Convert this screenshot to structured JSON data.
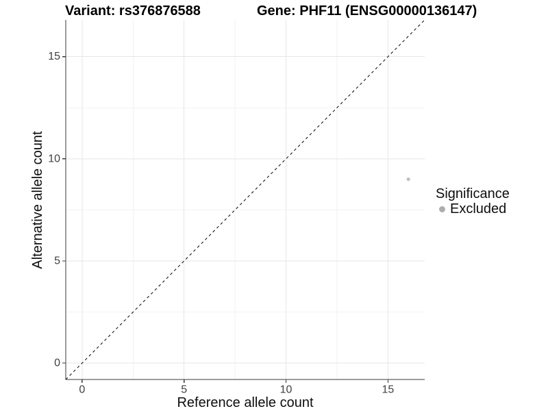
{
  "chart_data": {
    "type": "scatter",
    "title_left": "Variant: rs376876588",
    "title_right": "Gene: PHF11 (ENSG00000136147)",
    "xlabel": "Reference allele count",
    "ylabel": "Alternative allele count",
    "xlim": [
      -0.8,
      16.8
    ],
    "ylim": [
      -0.8,
      16.8
    ],
    "xticks": [
      0,
      5,
      10,
      15
    ],
    "xtick_labels": [
      "0",
      "5",
      "10",
      "15"
    ],
    "yticks": [
      0,
      5,
      10,
      15
    ],
    "ytick_labels": [
      "0",
      "5",
      "10",
      "15"
    ],
    "xticks_minor": [
      2.5,
      7.5,
      12.5
    ],
    "yticks_minor": [
      2.5,
      7.5,
      12.5
    ],
    "grid": {
      "major_color": "#e6e6e6",
      "minor_color": "#f2f2f2"
    },
    "axis": {
      "line_color": "#3a3a3a",
      "tick_color": "#3a3a3a",
      "tick_label_color": "#404040",
      "tick_label_size": 16,
      "tick_length": 5
    },
    "points": [
      {
        "x": 16,
        "y": 9,
        "series": "Excluded",
        "color": "#bebebe",
        "radius": 2.6
      }
    ],
    "reference_line": {
      "slope": 1,
      "intercept": 0,
      "style": "dashed",
      "dash": "4 4",
      "color": "#000000",
      "width": 1
    },
    "legend": {
      "title": "Significance",
      "position": "right",
      "items": [
        {
          "label": "Excluded",
          "color": "#adadad",
          "marker": "circle"
        }
      ]
    }
  }
}
